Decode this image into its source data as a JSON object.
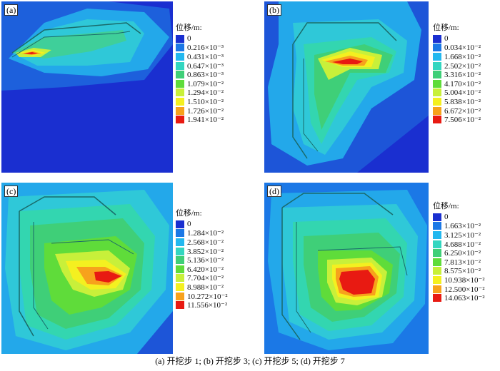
{
  "panels": [
    {
      "id": "a",
      "tag": "(a)",
      "legend_title": "位移/m:",
      "legend_values": [
        "0",
        "0.216×10⁻³",
        "0.431×10⁻³",
        "0.647×10⁻³",
        "0.863×10⁻³",
        "1.079×10⁻²",
        "1.294×10⁻²",
        "1.510×10⁻²",
        "1.726×10⁻²",
        "1.941×10⁻²"
      ]
    },
    {
      "id": "b",
      "tag": "(b)",
      "legend_title": "位移/m:",
      "legend_values": [
        "0",
        "0.034×10⁻²",
        "1.668×10⁻²",
        "2.502×10⁻²",
        "3.316×10⁻²",
        "4.170×10⁻²",
        "5.004×10⁻²",
        "5.838×10⁻²",
        "6.672×10⁻²",
        "7.506×10⁻²"
      ]
    },
    {
      "id": "c",
      "tag": "(c)",
      "legend_title": "位移/m:",
      "legend_values": [
        "0",
        "1.284×10⁻²",
        "2.568×10⁻²",
        "3.852×10⁻²",
        "5.136×10⁻²",
        "6.420×10⁻²",
        "7.704×10⁻²",
        "8.988×10⁻²",
        "10.272×10⁻²",
        "11.556×10⁻²"
      ]
    },
    {
      "id": "d",
      "tag": "(d)",
      "legend_title": "位移/m:",
      "legend_values": [
        "0",
        "1.663×10⁻²",
        "3.125×10⁻²",
        "4.688×10⁻²",
        "6.250×10⁻²",
        "7.813×10⁻²",
        "8.575×10⁻²",
        "10.938×10⁻²",
        "12.500×10⁻²",
        "14.063×10⁻²"
      ]
    }
  ],
  "legend_colors": [
    "#1a2fd0",
    "#1b78e6",
    "#23b8ef",
    "#33d6c0",
    "#3fcf78",
    "#5fdc3a",
    "#c8f03a",
    "#f4f020",
    "#f7a21c",
    "#e81a12"
  ],
  "caption": "(a)  开挖步 1; (b)  开挖步 3; (c)  开挖步 5; (d)  开挖步 7"
}
